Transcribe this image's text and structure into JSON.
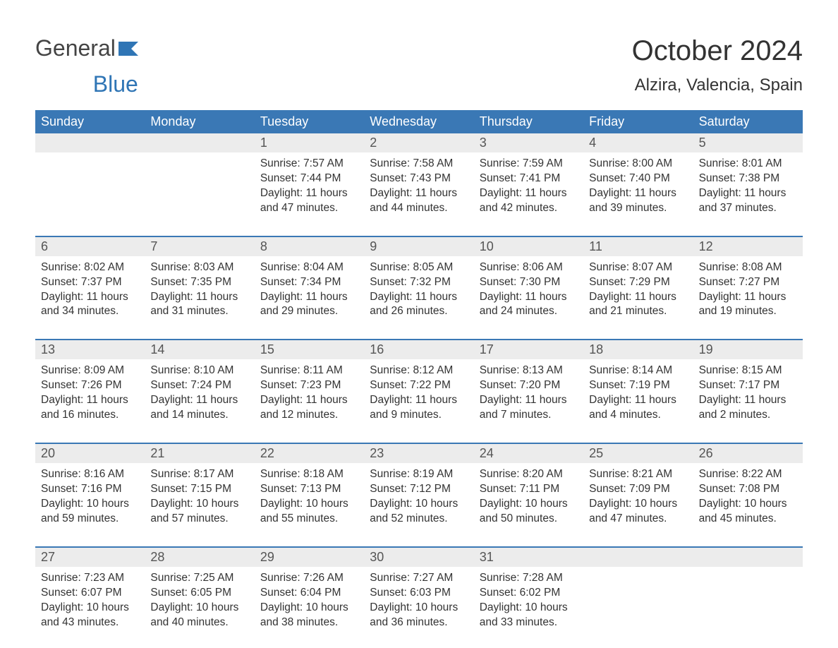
{
  "logo": {
    "text1": "General",
    "text2": "Blue",
    "flag_color": "#2f75b5"
  },
  "title": "October 2024",
  "location": "Alzira, Valencia, Spain",
  "colors": {
    "header_bg": "#3a78b5",
    "header_text": "#ffffff",
    "daynum_bg": "#ececec",
    "text": "#333333",
    "rule": "#3a78b5"
  },
  "weekdays": [
    "Sunday",
    "Monday",
    "Tuesday",
    "Wednesday",
    "Thursday",
    "Friday",
    "Saturday"
  ],
  "weeks": [
    [
      null,
      null,
      {
        "n": "1",
        "sr": "7:57 AM",
        "ss": "7:44 PM",
        "dl": "11 hours and 47 minutes."
      },
      {
        "n": "2",
        "sr": "7:58 AM",
        "ss": "7:43 PM",
        "dl": "11 hours and 44 minutes."
      },
      {
        "n": "3",
        "sr": "7:59 AM",
        "ss": "7:41 PM",
        "dl": "11 hours and 42 minutes."
      },
      {
        "n": "4",
        "sr": "8:00 AM",
        "ss": "7:40 PM",
        "dl": "11 hours and 39 minutes."
      },
      {
        "n": "5",
        "sr": "8:01 AM",
        "ss": "7:38 PM",
        "dl": "11 hours and 37 minutes."
      }
    ],
    [
      {
        "n": "6",
        "sr": "8:02 AM",
        "ss": "7:37 PM",
        "dl": "11 hours and 34 minutes."
      },
      {
        "n": "7",
        "sr": "8:03 AM",
        "ss": "7:35 PM",
        "dl": "11 hours and 31 minutes."
      },
      {
        "n": "8",
        "sr": "8:04 AM",
        "ss": "7:34 PM",
        "dl": "11 hours and 29 minutes."
      },
      {
        "n": "9",
        "sr": "8:05 AM",
        "ss": "7:32 PM",
        "dl": "11 hours and 26 minutes."
      },
      {
        "n": "10",
        "sr": "8:06 AM",
        "ss": "7:30 PM",
        "dl": "11 hours and 24 minutes."
      },
      {
        "n": "11",
        "sr": "8:07 AM",
        "ss": "7:29 PM",
        "dl": "11 hours and 21 minutes."
      },
      {
        "n": "12",
        "sr": "8:08 AM",
        "ss": "7:27 PM",
        "dl": "11 hours and 19 minutes."
      }
    ],
    [
      {
        "n": "13",
        "sr": "8:09 AM",
        "ss": "7:26 PM",
        "dl": "11 hours and 16 minutes."
      },
      {
        "n": "14",
        "sr": "8:10 AM",
        "ss": "7:24 PM",
        "dl": "11 hours and 14 minutes."
      },
      {
        "n": "15",
        "sr": "8:11 AM",
        "ss": "7:23 PM",
        "dl": "11 hours and 12 minutes."
      },
      {
        "n": "16",
        "sr": "8:12 AM",
        "ss": "7:22 PM",
        "dl": "11 hours and 9 minutes."
      },
      {
        "n": "17",
        "sr": "8:13 AM",
        "ss": "7:20 PM",
        "dl": "11 hours and 7 minutes."
      },
      {
        "n": "18",
        "sr": "8:14 AM",
        "ss": "7:19 PM",
        "dl": "11 hours and 4 minutes."
      },
      {
        "n": "19",
        "sr": "8:15 AM",
        "ss": "7:17 PM",
        "dl": "11 hours and 2 minutes."
      }
    ],
    [
      {
        "n": "20",
        "sr": "8:16 AM",
        "ss": "7:16 PM",
        "dl": "10 hours and 59 minutes."
      },
      {
        "n": "21",
        "sr": "8:17 AM",
        "ss": "7:15 PM",
        "dl": "10 hours and 57 minutes."
      },
      {
        "n": "22",
        "sr": "8:18 AM",
        "ss": "7:13 PM",
        "dl": "10 hours and 55 minutes."
      },
      {
        "n": "23",
        "sr": "8:19 AM",
        "ss": "7:12 PM",
        "dl": "10 hours and 52 minutes."
      },
      {
        "n": "24",
        "sr": "8:20 AM",
        "ss": "7:11 PM",
        "dl": "10 hours and 50 minutes."
      },
      {
        "n": "25",
        "sr": "8:21 AM",
        "ss": "7:09 PM",
        "dl": "10 hours and 47 minutes."
      },
      {
        "n": "26",
        "sr": "8:22 AM",
        "ss": "7:08 PM",
        "dl": "10 hours and 45 minutes."
      }
    ],
    [
      {
        "n": "27",
        "sr": "7:23 AM",
        "ss": "6:07 PM",
        "dl": "10 hours and 43 minutes."
      },
      {
        "n": "28",
        "sr": "7:25 AM",
        "ss": "6:05 PM",
        "dl": "10 hours and 40 minutes."
      },
      {
        "n": "29",
        "sr": "7:26 AM",
        "ss": "6:04 PM",
        "dl": "10 hours and 38 minutes."
      },
      {
        "n": "30",
        "sr": "7:27 AM",
        "ss": "6:03 PM",
        "dl": "10 hours and 36 minutes."
      },
      {
        "n": "31",
        "sr": "7:28 AM",
        "ss": "6:02 PM",
        "dl": "10 hours and 33 minutes."
      },
      null,
      null
    ]
  ],
  "labels": {
    "sunrise": "Sunrise: ",
    "sunset": "Sunset: ",
    "daylight": "Daylight: "
  }
}
